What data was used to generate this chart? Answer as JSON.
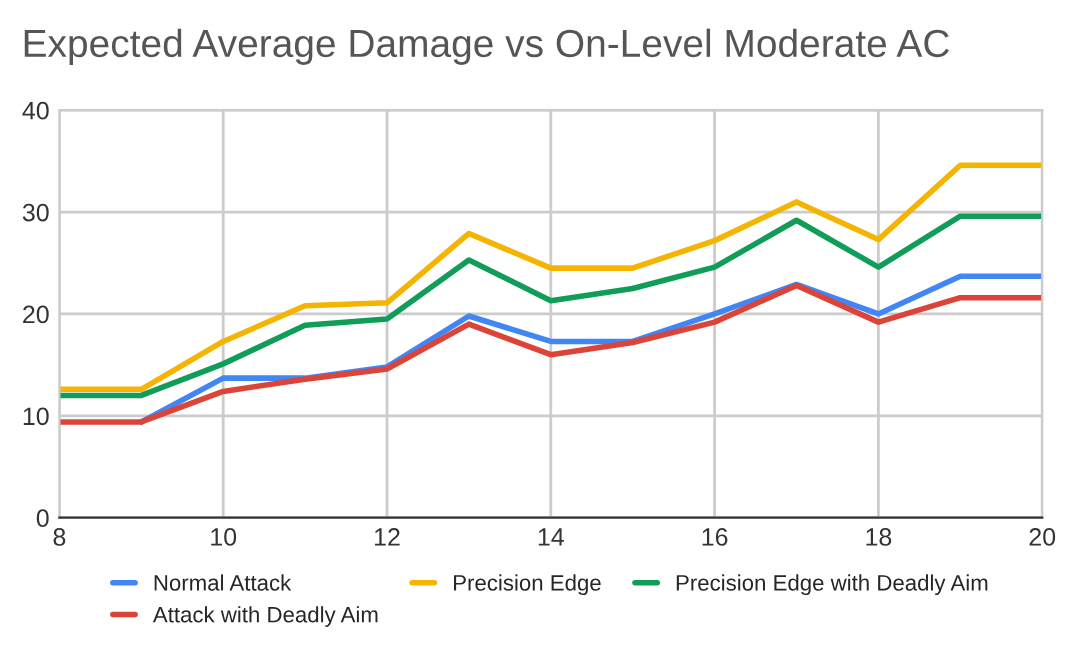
{
  "chart_data": {
    "type": "line",
    "title": "Expected Average Damage vs On-Level Moderate AC",
    "x": [
      8,
      9,
      10,
      11,
      12,
      13,
      14,
      15,
      16,
      17,
      18,
      19,
      20
    ],
    "series": [
      {
        "name": "Normal Attack",
        "color": "#4285f4",
        "values": [
          null,
          9.4,
          13.7,
          13.7,
          14.8,
          19.8,
          17.3,
          17.3,
          20,
          22.9,
          20,
          23.7,
          23.7
        ]
      },
      {
        "name": "Attack with Deadly Aim",
        "color": "#db4437",
        "values": [
          9.4,
          9.4,
          12.4,
          13.6,
          14.6,
          19,
          16,
          17.2,
          19.2,
          22.8,
          19.2,
          21.6,
          21.6
        ]
      },
      {
        "name": "Precision Edge",
        "color": "#f4b400",
        "values": [
          12.6,
          12.6,
          17.3,
          20.8,
          21.1,
          27.9,
          24.5,
          24.5,
          27.2,
          31,
          27.3,
          34.6,
          34.6
        ]
      },
      {
        "name": "Precision Edge with Deadly Aim",
        "color": "#0f9d58",
        "values": [
          12,
          12,
          15.1,
          18.9,
          19.5,
          25.3,
          21.3,
          22.5,
          24.6,
          29.2,
          24.6,
          29.6,
          29.6
        ]
      }
    ],
    "xlim": [
      8,
      20
    ],
    "xticks": [
      8,
      10,
      12,
      14,
      16,
      18,
      20
    ],
    "ylim": [
      0,
      40
    ],
    "yticks": [
      0,
      10,
      20,
      30,
      40
    ],
    "grid": true,
    "legend": "bottom",
    "marker": "none",
    "line_style": "solid"
  }
}
